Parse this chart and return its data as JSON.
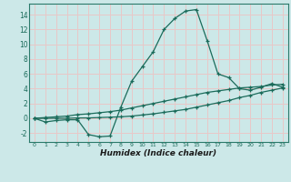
{
  "xlabel": "Humidex (Indice chaleur)",
  "xlim": [
    -0.5,
    23.5
  ],
  "ylim": [
    -3.2,
    15.5
  ],
  "xticks": [
    0,
    1,
    2,
    3,
    4,
    5,
    6,
    7,
    8,
    9,
    10,
    11,
    12,
    13,
    14,
    15,
    16,
    17,
    18,
    19,
    20,
    21,
    22,
    23
  ],
  "yticks": [
    -2,
    0,
    2,
    4,
    6,
    8,
    10,
    12,
    14
  ],
  "background_color": "#cce8e8",
  "grid_color": "#e8c8c8",
  "line_color": "#1a6b5a",
  "line1_x": [
    0,
    1,
    2,
    3,
    4,
    5,
    6,
    7,
    8,
    9,
    10,
    11,
    12,
    13,
    14,
    15,
    16,
    17,
    18,
    19,
    20,
    21,
    22,
    23
  ],
  "line1_y": [
    0.0,
    -0.5,
    -0.3,
    -0.2,
    -0.2,
    -2.2,
    -2.5,
    -2.4,
    1.5,
    5.0,
    7.0,
    9.0,
    12.0,
    13.5,
    14.5,
    14.7,
    10.5,
    6.0,
    5.5,
    4.0,
    3.8,
    4.2,
    4.7,
    4.2
  ],
  "line2_x": [
    0,
    1,
    2,
    3,
    4,
    5,
    6,
    7,
    8,
    9,
    10,
    11,
    12,
    13,
    14,
    15,
    16,
    17,
    18,
    19,
    20,
    21,
    22,
    23
  ],
  "line2_y": [
    0.0,
    0.1,
    0.2,
    0.3,
    0.5,
    0.6,
    0.75,
    0.9,
    1.1,
    1.4,
    1.7,
    2.0,
    2.3,
    2.6,
    2.9,
    3.2,
    3.5,
    3.7,
    3.9,
    4.1,
    4.2,
    4.3,
    4.5,
    4.6
  ],
  "line3_x": [
    0,
    1,
    2,
    3,
    4,
    5,
    6,
    7,
    8,
    9,
    10,
    11,
    12,
    13,
    14,
    15,
    16,
    17,
    18,
    19,
    20,
    21,
    22,
    23
  ],
  "line3_y": [
    0.0,
    0.0,
    0.0,
    0.0,
    0.05,
    0.05,
    0.1,
    0.15,
    0.2,
    0.3,
    0.45,
    0.6,
    0.8,
    1.0,
    1.2,
    1.5,
    1.8,
    2.1,
    2.4,
    2.8,
    3.1,
    3.5,
    3.8,
    4.1
  ]
}
